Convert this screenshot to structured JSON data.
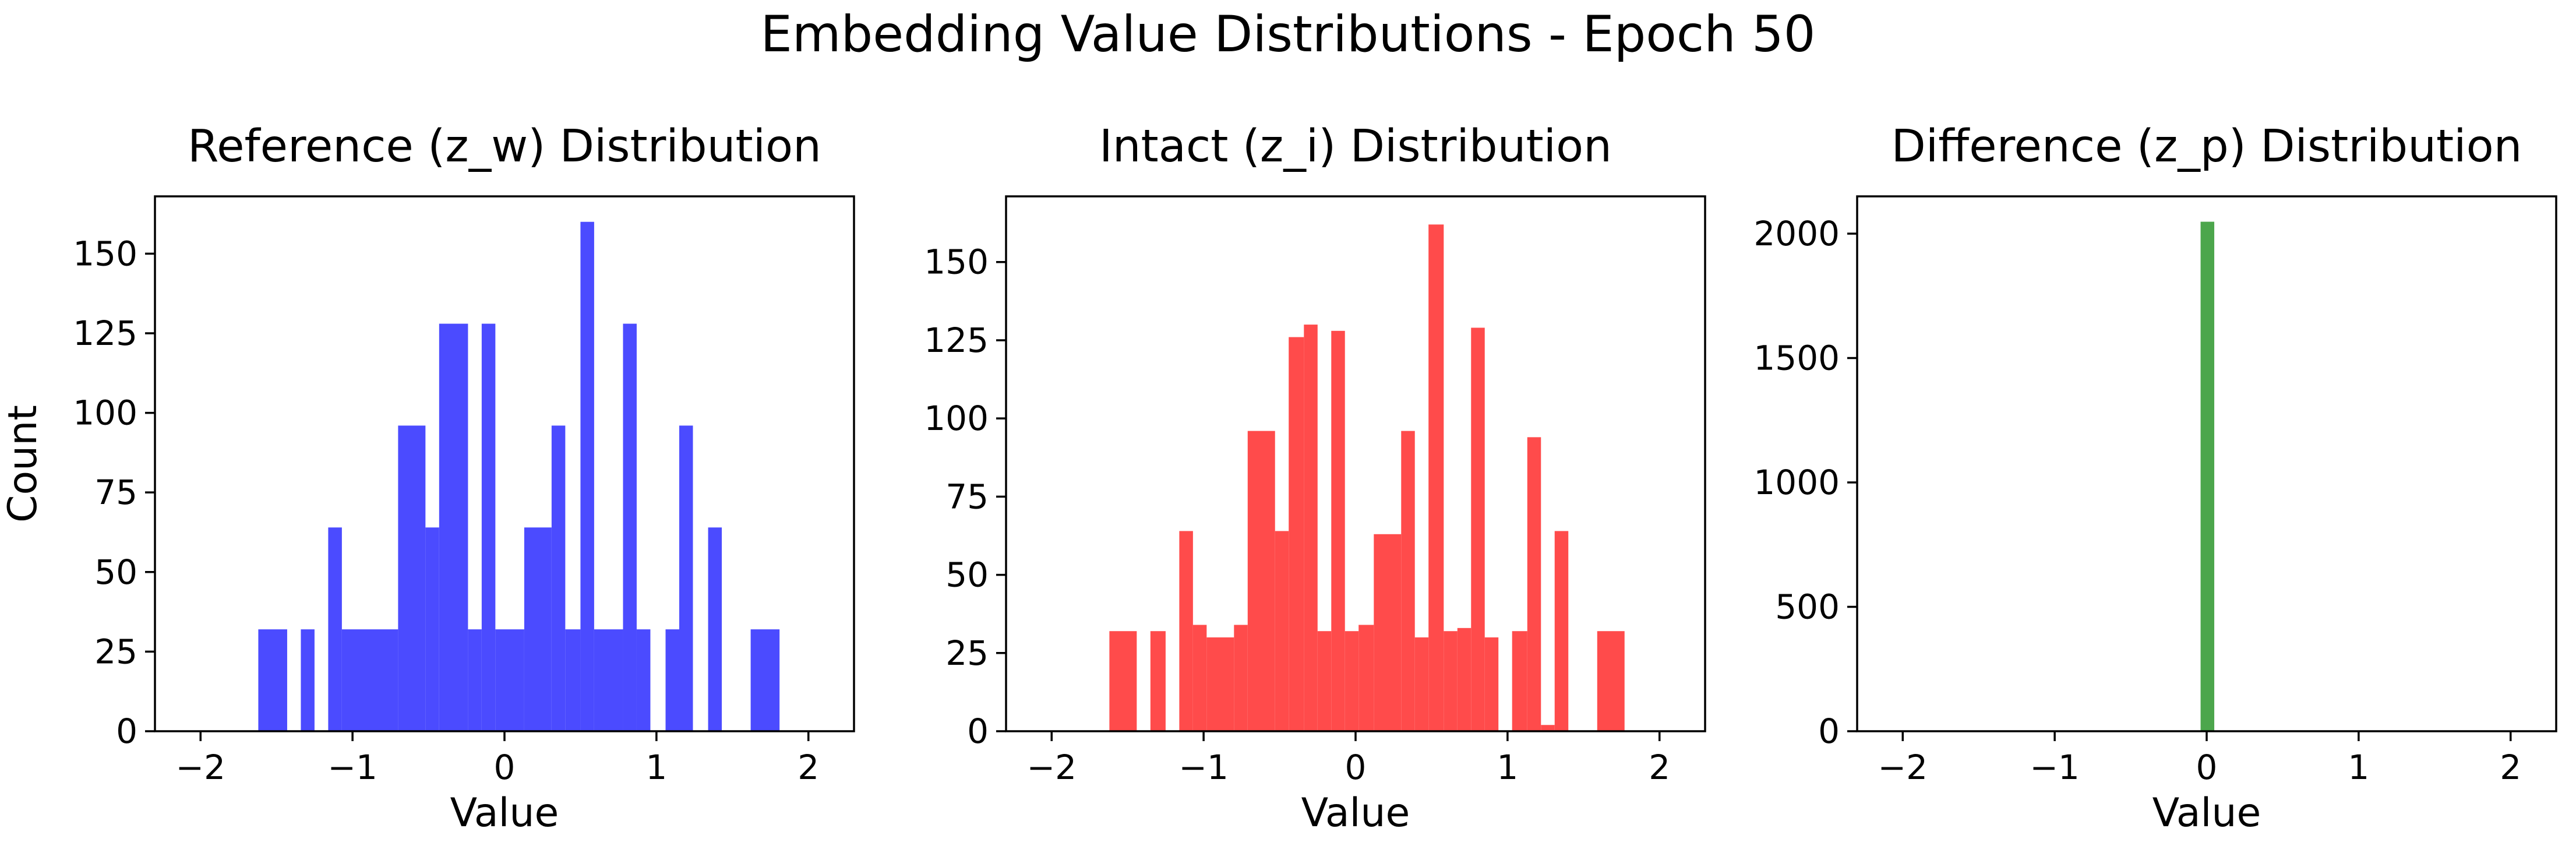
{
  "figure_title": "Embedding Value Distributions - Epoch 50",
  "chart_data": [
    {
      "type": "bar",
      "title": "Reference (z_w) Distribution",
      "xlabel": "Value",
      "ylabel": "Count",
      "color": "#4b4bff",
      "xlim": [
        -2.3,
        2.3
      ],
      "ylim": [
        0,
        168
      ],
      "xticks": [
        -2,
        -1,
        0,
        1,
        2
      ],
      "xtick_labels": [
        "−2",
        "−1",
        "0",
        "1",
        "2"
      ],
      "yticks": [
        0,
        25,
        50,
        75,
        100,
        125,
        150
      ],
      "bins": [
        {
          "x0": -1.62,
          "x1": -1.43,
          "count": 32
        },
        {
          "x0": -1.34,
          "x1": -1.25,
          "count": 32
        },
        {
          "x0": -1.16,
          "x1": -1.07,
          "count": 64
        },
        {
          "x0": -1.07,
          "x1": -0.7,
          "count": 32
        },
        {
          "x0": -0.7,
          "x1": -0.52,
          "count": 96
        },
        {
          "x0": -0.52,
          "x1": -0.43,
          "count": 64
        },
        {
          "x0": -0.43,
          "x1": -0.24,
          "count": 128
        },
        {
          "x0": -0.24,
          "x1": -0.15,
          "count": 32
        },
        {
          "x0": -0.15,
          "x1": -0.06,
          "count": 128
        },
        {
          "x0": -0.06,
          "x1": 0.13,
          "count": 32
        },
        {
          "x0": 0.13,
          "x1": 0.31,
          "count": 64
        },
        {
          "x0": 0.31,
          "x1": 0.4,
          "count": 96
        },
        {
          "x0": 0.4,
          "x1": 0.5,
          "count": 32
        },
        {
          "x0": 0.5,
          "x1": 0.59,
          "count": 160
        },
        {
          "x0": 0.59,
          "x1": 0.78,
          "count": 32
        },
        {
          "x0": 0.78,
          "x1": 0.87,
          "count": 128
        },
        {
          "x0": 0.87,
          "x1": 0.96,
          "count": 32
        },
        {
          "x0": 1.06,
          "x1": 1.15,
          "count": 32
        },
        {
          "x0": 1.15,
          "x1": 1.24,
          "count": 96
        },
        {
          "x0": 1.34,
          "x1": 1.43,
          "count": 64
        },
        {
          "x0": 1.62,
          "x1": 1.81,
          "count": 32
        }
      ]
    },
    {
      "type": "bar",
      "title": "Intact (z_i) Distribution",
      "xlabel": "Value",
      "ylabel": "",
      "color": "#ff4b4b",
      "xlim": [
        -2.3,
        2.3
      ],
      "ylim": [
        0,
        171
      ],
      "xticks": [
        -2,
        -1,
        0,
        1,
        2
      ],
      "xtick_labels": [
        "−2",
        "−1",
        "0",
        "1",
        "2"
      ],
      "yticks": [
        0,
        25,
        50,
        75,
        100,
        125,
        150
      ],
      "bins": [
        {
          "x0": -1.62,
          "x1": -1.44,
          "count": 32
        },
        {
          "x0": -1.35,
          "x1": -1.25,
          "count": 32
        },
        {
          "x0": -1.16,
          "x1": -1.07,
          "count": 64
        },
        {
          "x0": -1.07,
          "x1": -0.98,
          "count": 34
        },
        {
          "x0": -0.98,
          "x1": -0.8,
          "count": 30
        },
        {
          "x0": -0.8,
          "x1": -0.71,
          "count": 34
        },
        {
          "x0": -0.71,
          "x1": -0.53,
          "count": 96
        },
        {
          "x0": -0.53,
          "x1": -0.44,
          "count": 64
        },
        {
          "x0": -0.44,
          "x1": -0.34,
          "count": 126
        },
        {
          "x0": -0.34,
          "x1": -0.25,
          "count": 130
        },
        {
          "x0": -0.25,
          "x1": -0.16,
          "count": 32
        },
        {
          "x0": -0.16,
          "x1": -0.07,
          "count": 128
        },
        {
          "x0": -0.07,
          "x1": 0.02,
          "count": 32
        },
        {
          "x0": 0.02,
          "x1": 0.12,
          "count": 34
        },
        {
          "x0": 0.12,
          "x1": 0.3,
          "count": 63
        },
        {
          "x0": 0.3,
          "x1": 0.39,
          "count": 96
        },
        {
          "x0": 0.39,
          "x1": 0.48,
          "count": 30
        },
        {
          "x0": 0.48,
          "x1": 0.58,
          "count": 162
        },
        {
          "x0": 0.58,
          "x1": 0.67,
          "count": 32
        },
        {
          "x0": 0.67,
          "x1": 0.76,
          "count": 33
        },
        {
          "x0": 0.76,
          "x1": 0.85,
          "count": 129
        },
        {
          "x0": 0.85,
          "x1": 0.94,
          "count": 30
        },
        {
          "x0": 1.03,
          "x1": 1.13,
          "count": 32
        },
        {
          "x0": 1.13,
          "x1": 1.22,
          "count": 94
        },
        {
          "x0": 1.22,
          "x1": 1.31,
          "count": 2
        },
        {
          "x0": 1.31,
          "x1": 1.4,
          "count": 64
        },
        {
          "x0": 1.59,
          "x1": 1.77,
          "count": 32
        }
      ]
    },
    {
      "type": "bar",
      "title": "Difference (z_p) Distribution",
      "xlabel": "Value",
      "ylabel": "",
      "color": "#4ca64c",
      "xlim": [
        -2.3,
        2.3
      ],
      "ylim": [
        0,
        2150
      ],
      "xticks": [
        -2,
        -1,
        0,
        1,
        2
      ],
      "xtick_labels": [
        "−2",
        "−1",
        "0",
        "1",
        "2"
      ],
      "yticks": [
        0,
        500,
        1000,
        1500,
        2000
      ],
      "bins": [
        {
          "x0": -0.04,
          "x1": 0.05,
          "count": 2048
        }
      ]
    }
  ]
}
